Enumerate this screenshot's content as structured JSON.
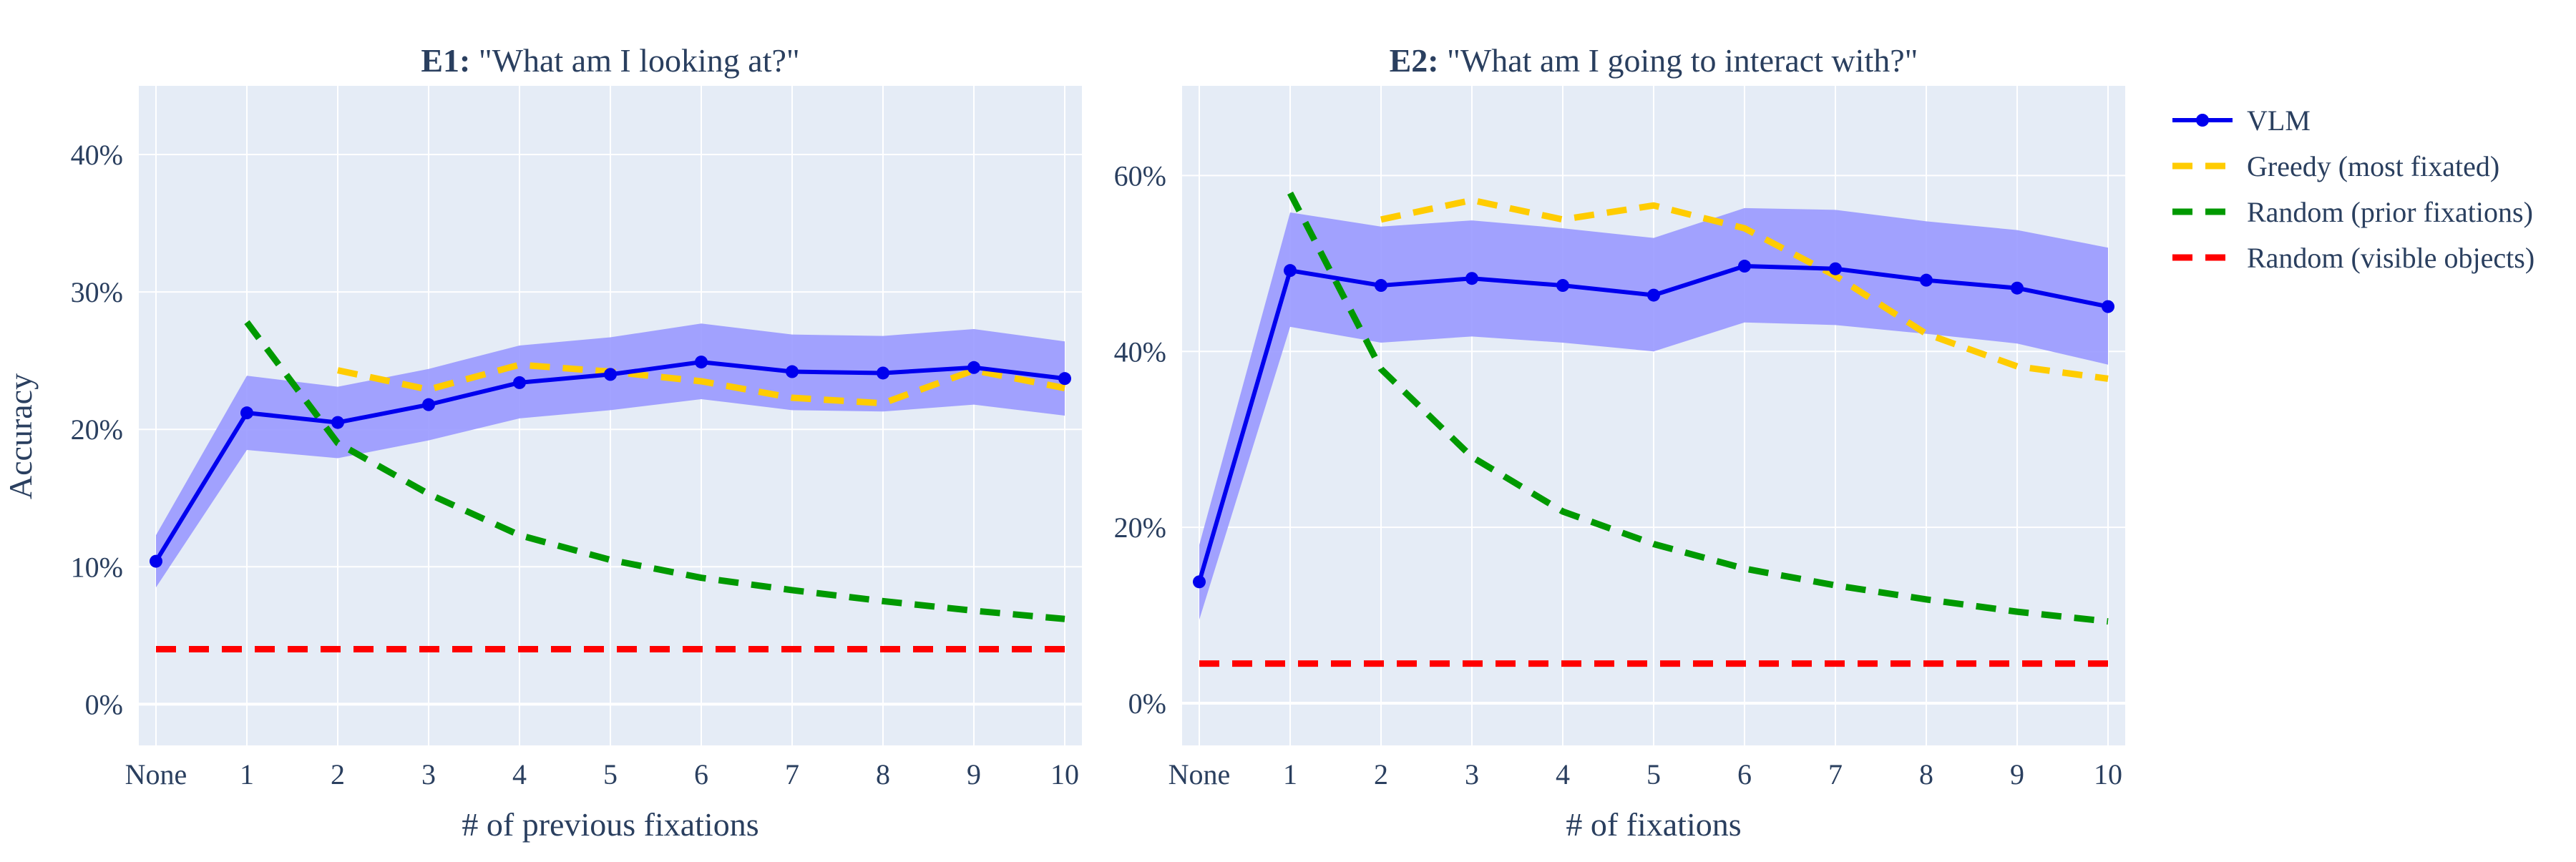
{
  "chart_data": [
    {
      "type": "line",
      "title_bold": "E1:",
      "title_rest": " \"What am I looking at?\"",
      "xlabel": "# of previous fixations",
      "ylabel": "Accuracy",
      "categories": [
        "None",
        "1",
        "2",
        "3",
        "4",
        "5",
        "6",
        "7",
        "8",
        "9",
        "10"
      ],
      "ylim": [
        -3,
        45
      ],
      "yticks": [
        0,
        10,
        20,
        30,
        40
      ],
      "ytick_labels": [
        "0%",
        "10%",
        "20%",
        "30%",
        "40%"
      ],
      "band": {
        "lower": [
          8.5,
          18.5,
          17.9,
          19.2,
          20.8,
          21.4,
          22.2,
          21.4,
          21.3,
          21.8,
          21.0
        ],
        "upper": [
          12.3,
          23.9,
          23.1,
          24.4,
          26.1,
          26.7,
          27.7,
          26.9,
          26.8,
          27.3,
          26.4
        ]
      },
      "series": [
        {
          "name": "VLM",
          "color": "#0000ee",
          "style": "solid-markers",
          "values": [
            10.4,
            21.2,
            20.5,
            21.8,
            23.4,
            24.0,
            24.9,
            24.2,
            24.1,
            24.5,
            23.7
          ]
        },
        {
          "name": "Greedy (most fixated)",
          "color": "#ffcc00",
          "style": "dash",
          "values": [
            null,
            null,
            24.3,
            22.9,
            24.7,
            24.2,
            23.5,
            22.3,
            21.9,
            24.3,
            23.0
          ]
        },
        {
          "name": "Random (prior fixations)",
          "color": "#009900",
          "style": "dash",
          "values": [
            null,
            27.8,
            19.0,
            15.3,
            12.3,
            10.5,
            9.2,
            8.3,
            7.5,
            6.8,
            6.2
          ]
        },
        {
          "name": "Random (visible objects)",
          "color": "#ff0000",
          "style": "dash",
          "values": [
            4.0,
            4.0,
            4.0,
            4.0,
            4.0,
            4.0,
            4.0,
            4.0,
            4.0,
            4.0,
            4.0
          ]
        }
      ]
    },
    {
      "type": "line",
      "title_bold": "E2:",
      "title_rest": " \"What am I going to interact with?\"",
      "xlabel": "# of fixations",
      "ylabel": "",
      "categories": [
        "None",
        "1",
        "2",
        "3",
        "4",
        "5",
        "6",
        "7",
        "8",
        "9",
        "10"
      ],
      "ylim": [
        -4.8,
        70.2
      ],
      "yticks": [
        0,
        20,
        40,
        60
      ],
      "ytick_labels": [
        "0%",
        "20%",
        "40%",
        "60%"
      ],
      "band": {
        "lower": [
          9.5,
          42.8,
          41.0,
          41.7,
          41.0,
          40.0,
          43.3,
          43.0,
          42.0,
          40.9,
          38.5
        ],
        "upper": [
          18.0,
          55.8,
          54.2,
          54.9,
          54.0,
          52.9,
          56.3,
          56.1,
          54.8,
          53.8,
          51.8
        ]
      },
      "series": [
        {
          "name": "VLM",
          "color": "#0000ee",
          "style": "solid-markers",
          "values": [
            13.8,
            49.2,
            47.5,
            48.3,
            47.5,
            46.4,
            49.7,
            49.4,
            48.1,
            47.2,
            45.1
          ]
        },
        {
          "name": "Greedy (most fixated)",
          "color": "#ffcc00",
          "style": "dash",
          "values": [
            null,
            null,
            55.0,
            57.2,
            55.0,
            56.6,
            54.0,
            48.6,
            42.0,
            38.3,
            36.9
          ]
        },
        {
          "name": "Random (prior fixations)",
          "color": "#009900",
          "style": "dash",
          "values": [
            null,
            58.0,
            38.0,
            28.0,
            21.8,
            18.1,
            15.3,
            13.4,
            11.8,
            10.4,
            9.3
          ]
        },
        {
          "name": "Random (visible objects)",
          "color": "#ff0000",
          "style": "dash",
          "values": [
            4.5,
            4.5,
            4.5,
            4.5,
            4.5,
            4.5,
            4.5,
            4.5,
            4.5,
            4.5,
            4.5
          ]
        }
      ]
    }
  ],
  "legend": {
    "items": [
      {
        "label": "VLM",
        "color": "#0000ee",
        "style": "solid-markers"
      },
      {
        "label": "Greedy (most fixated)",
        "color": "#ffcc00",
        "style": "dash"
      },
      {
        "label": "Random (prior fixations)",
        "color": "#009900",
        "style": "dash"
      },
      {
        "label": "Random (visible objects)",
        "color": "#ff0000",
        "style": "dash"
      }
    ]
  },
  "colors": {
    "plot_bg": "#e5ecf6",
    "grid": "#ffffff",
    "band_fill": "#9999ff",
    "text": "#2a3f5f"
  }
}
